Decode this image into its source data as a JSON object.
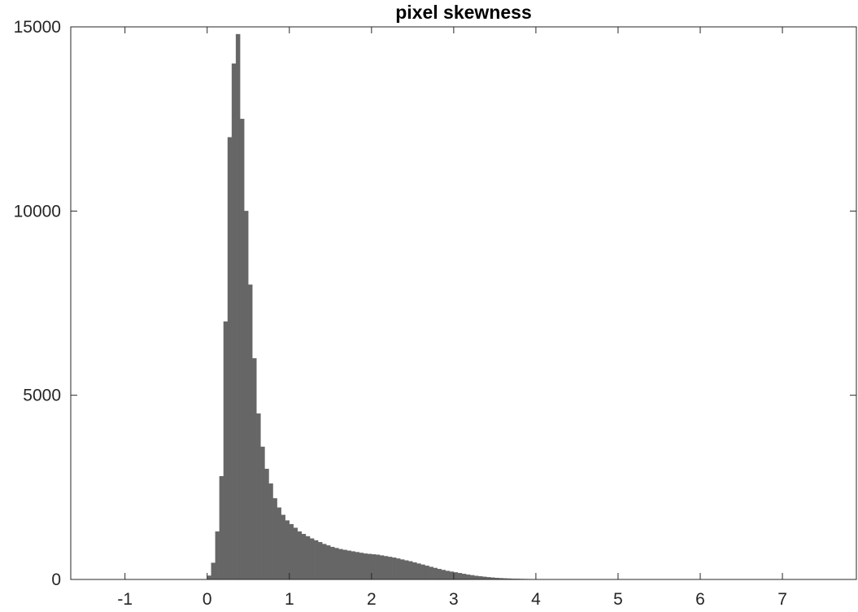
{
  "chart_data": {
    "type": "bar",
    "title": "pixel skewness",
    "xlabel": "",
    "ylabel": "",
    "xlim": [
      -1.66,
      7.9
    ],
    "ylim": [
      0,
      15000
    ],
    "x_ticks": [
      -1,
      0,
      1,
      2,
      3,
      4,
      5,
      6,
      7
    ],
    "x_tick_labels": [
      "-1",
      "0",
      "1",
      "2",
      "3",
      "4",
      "5",
      "6",
      "7"
    ],
    "y_ticks": [
      0,
      5000,
      10000,
      15000
    ],
    "y_tick_labels": [
      "0",
      "5000",
      "10000",
      "15000"
    ],
    "grid": false,
    "bin_width": 0.05,
    "bar_color": "#666666",
    "series": [
      {
        "x": [
          0.025,
          0.075,
          0.125,
          0.175,
          0.225,
          0.275,
          0.325,
          0.375,
          0.425,
          0.475,
          0.525,
          0.575,
          0.625,
          0.675,
          0.725,
          0.775,
          0.825,
          0.875,
          0.925,
          0.975,
          1.025,
          1.075,
          1.125,
          1.175,
          1.225,
          1.275,
          1.325,
          1.375,
          1.425,
          1.475,
          1.525,
          1.575,
          1.625,
          1.675,
          1.725,
          1.775,
          1.825,
          1.875,
          1.925,
          1.975,
          2.025,
          2.075,
          2.125,
          2.175,
          2.225,
          2.275,
          2.325,
          2.375,
          2.425,
          2.475,
          2.525,
          2.575,
          2.625,
          2.675,
          2.725,
          2.775,
          2.825,
          2.875,
          2.925,
          2.975,
          3.025,
          3.075,
          3.125,
          3.175,
          3.225,
          3.275,
          3.325,
          3.375,
          3.425,
          3.475,
          3.525,
          3.575,
          3.625,
          3.675,
          3.725,
          3.775,
          3.825,
          3.875,
          3.925,
          3.975,
          4.025,
          4.075,
          4.125,
          4.175,
          4.225,
          4.275,
          4.325,
          4.375,
          4.425,
          4.475
        ],
        "values": [
          100,
          450,
          1300,
          2800,
          7000,
          12000,
          14000,
          14800,
          12500,
          10000,
          8000,
          6000,
          4500,
          3600,
          3000,
          2600,
          2200,
          1950,
          1750,
          1600,
          1500,
          1400,
          1300,
          1230,
          1170,
          1110,
          1060,
          1010,
          960,
          920,
          880,
          850,
          820,
          800,
          780,
          760,
          740,
          720,
          700,
          690,
          680,
          670,
          650,
          630,
          610,
          590,
          565,
          540,
          515,
          490,
          460,
          430,
          400,
          370,
          340,
          310,
          280,
          255,
          230,
          210,
          190,
          170,
          150,
          130,
          112,
          96,
          82,
          70,
          58,
          48,
          40,
          33,
          27,
          22,
          18,
          15,
          12,
          10,
          8,
          7,
          6,
          5,
          4,
          3,
          3,
          2,
          2,
          1,
          1,
          1
        ]
      }
    ]
  }
}
